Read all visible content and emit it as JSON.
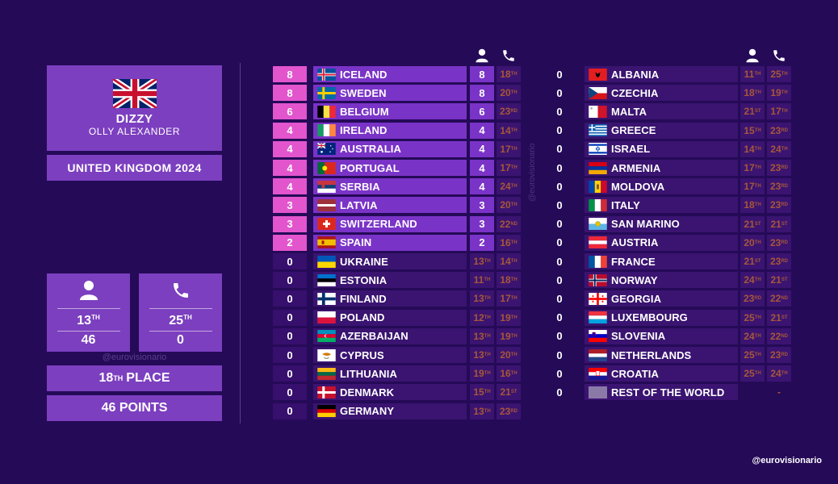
{
  "artist": {
    "name": "DIZZY",
    "performer": "OLLY ALEXANDER",
    "country_year": "UNITED KINGDOM 2024"
  },
  "stats": {
    "televote": {
      "icon": "person-icon",
      "rank_num": "13",
      "rank_suffix": "TH",
      "points": "46"
    },
    "phone": {
      "icon": "phone-icon",
      "rank_num": "25",
      "rank_suffix": "TH",
      "points": "0"
    }
  },
  "watermark": "@eurovisionario",
  "place": {
    "num": "18",
    "suffix": "TH",
    "label": "PLACE"
  },
  "points_label": "46 POINTS",
  "brand": "@eurovisionario",
  "colors": {
    "background": "#250a58",
    "panel": "#7c3fbf",
    "highlight": "#e255cd",
    "rank_text": "#a6573b"
  },
  "left_column": [
    {
      "pts": "8",
      "country": "ICELAND",
      "flag": "iceland",
      "score": "8",
      "rank": "18",
      "suf": "TH"
    },
    {
      "pts": "8",
      "country": "SWEDEN",
      "flag": "sweden",
      "score": "8",
      "rank": "20",
      "suf": "TH"
    },
    {
      "pts": "6",
      "country": "BELGIUM",
      "flag": "belgium",
      "score": "6",
      "rank": "23",
      "suf": "RD"
    },
    {
      "pts": "4",
      "country": "IRELAND",
      "flag": "ireland",
      "score": "4",
      "rank": "14",
      "suf": "TH"
    },
    {
      "pts": "4",
      "country": "AUSTRALIA",
      "flag": "australia",
      "score": "4",
      "rank": "17",
      "suf": "TH"
    },
    {
      "pts": "4",
      "country": "PORTUGAL",
      "flag": "portugal",
      "score": "4",
      "rank": "17",
      "suf": "TH"
    },
    {
      "pts": "4",
      "country": "SERBIA",
      "flag": "serbia",
      "score": "4",
      "rank": "24",
      "suf": "TH"
    },
    {
      "pts": "3",
      "country": "LATVIA",
      "flag": "latvia",
      "score": "3",
      "rank": "20",
      "suf": "TH"
    },
    {
      "pts": "3",
      "country": "SWITZERLAND",
      "flag": "switzerland",
      "score": "3",
      "rank": "22",
      "suf": "ND"
    },
    {
      "pts": "2",
      "country": "SPAIN",
      "flag": "spain",
      "score": "2",
      "rank": "16",
      "suf": "TH"
    },
    {
      "pts": "0",
      "country": "UKRAINE",
      "flag": "ukraine",
      "r1": "13",
      "s1": "TH",
      "r2": "14",
      "s2": "TH"
    },
    {
      "pts": "0",
      "country": "ESTONIA",
      "flag": "estonia",
      "r1": "11",
      "s1": "TH",
      "r2": "18",
      "s2": "TH"
    },
    {
      "pts": "0",
      "country": "FINLAND",
      "flag": "finland",
      "r1": "13",
      "s1": "TH",
      "r2": "17",
      "s2": "TH"
    },
    {
      "pts": "0",
      "country": "POLAND",
      "flag": "poland",
      "r1": "12",
      "s1": "TH",
      "r2": "19",
      "s2": "TH"
    },
    {
      "pts": "0",
      "country": "AZERBAIJAN",
      "flag": "azerbaijan",
      "r1": "13",
      "s1": "TH",
      "r2": "19",
      "s2": "TH"
    },
    {
      "pts": "0",
      "country": "CYPRUS",
      "flag": "cyprus",
      "r1": "13",
      "s1": "TH",
      "r2": "20",
      "s2": "TH"
    },
    {
      "pts": "0",
      "country": "LITHUANIA",
      "flag": "lithuania",
      "r1": "19",
      "s1": "TH",
      "r2": "16",
      "s2": "TH"
    },
    {
      "pts": "0",
      "country": "DENMARK",
      "flag": "denmark",
      "r1": "15",
      "s1": "TH",
      "r2": "21",
      "s2": "ST"
    },
    {
      "pts": "0",
      "country": "GERMANY",
      "flag": "germany",
      "r1": "13",
      "s1": "TH",
      "r2": "23",
      "s2": "RD"
    }
  ],
  "right_column": [
    {
      "pts": "0",
      "country": "ALBANIA",
      "flag": "albania",
      "r1": "11",
      "s1": "TH",
      "r2": "25",
      "s2": "TH"
    },
    {
      "pts": "0",
      "country": "CZECHIA",
      "flag": "czechia",
      "r1": "18",
      "s1": "TH",
      "r2": "19",
      "s2": "TH"
    },
    {
      "pts": "0",
      "country": "MALTA",
      "flag": "malta",
      "r1": "21",
      "s1": "ST",
      "r2": "17",
      "s2": "TH"
    },
    {
      "pts": "0",
      "country": "GREECE",
      "flag": "greece",
      "r1": "15",
      "s1": "TH",
      "r2": "23",
      "s2": "RD"
    },
    {
      "pts": "0",
      "country": "ISRAEL",
      "flag": "israel",
      "r1": "14",
      "s1": "TH",
      "r2": "24",
      "s2": "TH"
    },
    {
      "pts": "0",
      "country": "ARMENIA",
      "flag": "armenia",
      "r1": "17",
      "s1": "TH",
      "r2": "23",
      "s2": "RD"
    },
    {
      "pts": "0",
      "country": "MOLDOVA",
      "flag": "moldova",
      "r1": "17",
      "s1": "TH",
      "r2": "23",
      "s2": "RD"
    },
    {
      "pts": "0",
      "country": "ITALY",
      "flag": "italy",
      "r1": "18",
      "s1": "TH",
      "r2": "23",
      "s2": "RD"
    },
    {
      "pts": "0",
      "country": "SAN MARINO",
      "flag": "sanmarino",
      "r1": "21",
      "s1": "ST",
      "r2": "21",
      "s2": "ST"
    },
    {
      "pts": "0",
      "country": "AUSTRIA",
      "flag": "austria",
      "r1": "20",
      "s1": "TH",
      "r2": "23",
      "s2": "RD"
    },
    {
      "pts": "0",
      "country": "FRANCE",
      "flag": "france",
      "r1": "21",
      "s1": "ST",
      "r2": "23",
      "s2": "RD"
    },
    {
      "pts": "0",
      "country": "NORWAY",
      "flag": "norway",
      "r1": "24",
      "s1": "TH",
      "r2": "21",
      "s2": "ST"
    },
    {
      "pts": "0",
      "country": "GEORGIA",
      "flag": "georgia",
      "r1": "23",
      "s1": "RD",
      "r2": "22",
      "s2": "ND"
    },
    {
      "pts": "0",
      "country": "LUXEMBOURG",
      "flag": "luxembourg",
      "r1": "25",
      "s1": "TH",
      "r2": "21",
      "s2": "ST"
    },
    {
      "pts": "0",
      "country": "SLOVENIA",
      "flag": "slovenia",
      "r1": "24",
      "s1": "TH",
      "r2": "22",
      "s2": "ND"
    },
    {
      "pts": "0",
      "country": "NETHERLANDS",
      "flag": "netherlands",
      "r1": "25",
      "s1": "TH",
      "r2": "23",
      "s2": "RD"
    },
    {
      "pts": "0",
      "country": "CROATIA",
      "flag": "croatia",
      "r1": "25",
      "s1": "TH",
      "r2": "24",
      "s2": "TH"
    },
    {
      "pts": "0",
      "country": "REST OF THE WORLD",
      "flag": "rest",
      "r1": "",
      "s1": "",
      "r2": "-",
      "s2": ""
    }
  ]
}
